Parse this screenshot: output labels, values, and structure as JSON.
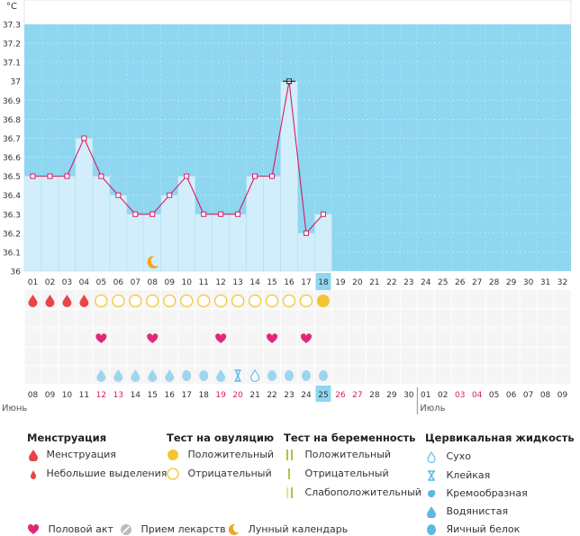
{
  "chart_data": {
    "type": "line",
    "title": "",
    "ylabel": "°C",
    "ylim": [
      36.0,
      37.3
    ],
    "yticks": [
      "36",
      "36.1",
      "36.2",
      "36.3",
      "36.4",
      "36.5",
      "36.6",
      "36.7",
      "36.8",
      "36.9",
      "37",
      "37.1",
      "37.2",
      "37.3"
    ],
    "cycle_days": [
      "01",
      "02",
      "03",
      "04",
      "05",
      "06",
      "07",
      "08",
      "09",
      "10",
      "11",
      "12",
      "13",
      "14",
      "15",
      "16",
      "17",
      "18",
      "19",
      "20",
      "21",
      "22",
      "23",
      "24",
      "25",
      "26",
      "27",
      "28",
      "29",
      "30",
      "31",
      "32"
    ],
    "today_index": 17,
    "temperatures": [
      36.5,
      36.5,
      36.5,
      36.7,
      36.5,
      36.4,
      36.3,
      36.3,
      36.4,
      36.5,
      36.3,
      36.3,
      36.3,
      36.5,
      36.5,
      37.0,
      36.2,
      36.3
    ],
    "dates": [
      "08",
      "09",
      "10",
      "11",
      "12",
      "13",
      "14",
      "15",
      "16",
      "17",
      "18",
      "19",
      "20",
      "21",
      "22",
      "23",
      "24",
      "25",
      "26",
      "27",
      "28",
      "29",
      "30",
      "01",
      "02",
      "03",
      "04",
      "05",
      "06",
      "07",
      "08",
      "09"
    ],
    "weekend_dates_idx": [
      4,
      5,
      11,
      12,
      18,
      19,
      25,
      26
    ],
    "months": [
      {
        "label": "Июнь",
        "start_index": 0
      },
      {
        "label": "Июль",
        "start_index": 23
      }
    ],
    "menstruation_days": [
      0,
      1,
      2,
      3
    ],
    "ovulation_negative_days": [
      4,
      5,
      6,
      7,
      8,
      9,
      10,
      11,
      12,
      13,
      14,
      15,
      16
    ],
    "ovulation_positive_days": [
      17
    ],
    "intercourse_days": [
      4,
      7,
      11,
      14,
      16
    ],
    "moon_days": [
      7
    ],
    "cervical_fluid": [
      "",
      "",
      "",
      "",
      "water",
      "water",
      "water",
      "water",
      "water",
      "white",
      "white",
      "water",
      "sticky",
      "dry",
      "white",
      "white",
      "white",
      "white"
    ]
  },
  "colors": {
    "sky": "#8fd6f0",
    "bar": "#d2eefb",
    "bar_edge": "#b0dff4",
    "line": "#d21e63",
    "blood": "#e84545",
    "ovulation": "#f4c430",
    "heart": "#e0287a",
    "drop_light": "#9fd4ef",
    "drop": "#5db8e6",
    "moon": "#f3a51e",
    "weekend": "#d21e63",
    "today": "#8fd6f0",
    "test": "#a8c93a"
  },
  "legend": {
    "menstruation": {
      "title": "Менструация",
      "items": [
        "Менструация",
        "Небольшие выделения"
      ]
    },
    "ovulation": {
      "title": "Тест на овуляцию",
      "items": [
        "Положительный",
        "Отрицательный"
      ]
    },
    "pregnancy": {
      "title": "Тест на беременность",
      "items": [
        "Положительный",
        "Отрицательный",
        "Слабоположительный"
      ]
    },
    "cervical": {
      "title": "Цервикальная жидкость",
      "items": [
        "Сухо",
        "Клейкая",
        "Кремообразная",
        "Водянистая",
        "Яичный белок"
      ]
    },
    "bottom": [
      "Половой акт",
      "Прием лекарств",
      "Лунный календарь"
    ]
  }
}
